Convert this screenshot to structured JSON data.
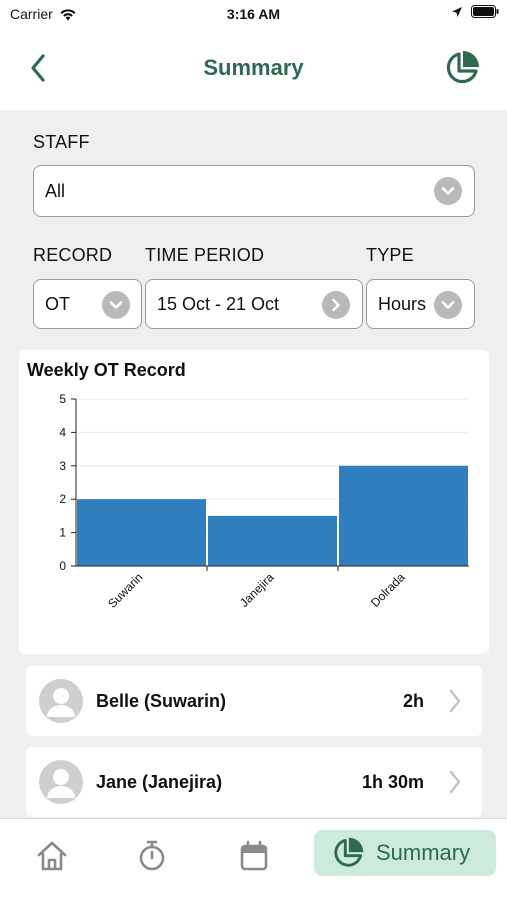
{
  "status_bar": {
    "carrier": "Carrier",
    "time": "3:16 AM"
  },
  "nav": {
    "title": "Summary",
    "back_icon": "chevron-left-icon",
    "right_icon": "pie-chart-icon"
  },
  "filters": {
    "staff": {
      "label": "STAFF",
      "value": "All"
    },
    "record": {
      "label": "RECORD",
      "value": "OT"
    },
    "time_period": {
      "label": "TIME PERIOD",
      "value": "15 Oct - 21 Oct"
    },
    "type": {
      "label": "TYPE",
      "value": "Hours"
    }
  },
  "chart_data": {
    "type": "bar",
    "title": "Weekly OT Record",
    "categories": [
      "Suwarin",
      "Janejira",
      "Dolrada"
    ],
    "values": [
      2,
      1.5,
      3
    ],
    "ylim": [
      0,
      5
    ],
    "yticks": [
      "0",
      "1",
      "2",
      "3",
      "4",
      "5"
    ],
    "xlabel": "",
    "ylabel": "",
    "bar_color": "#2f7fbf",
    "grid": true
  },
  "staff_list": [
    {
      "name": "Belle (Suwarin)",
      "value": "2h"
    },
    {
      "name": "Jane (Janejira)",
      "value": "1h 30m"
    }
  ],
  "tabs": [
    {
      "icon": "home-icon"
    },
    {
      "icon": "stopwatch-icon"
    },
    {
      "icon": "calendar-icon"
    },
    {
      "icon": "pie-chart-icon",
      "label": "Summary",
      "active": true
    }
  ],
  "colors": {
    "accent": "#2d6a4f",
    "active_tab_bg": "#cdebdc",
    "content_bg": "#efefef"
  }
}
